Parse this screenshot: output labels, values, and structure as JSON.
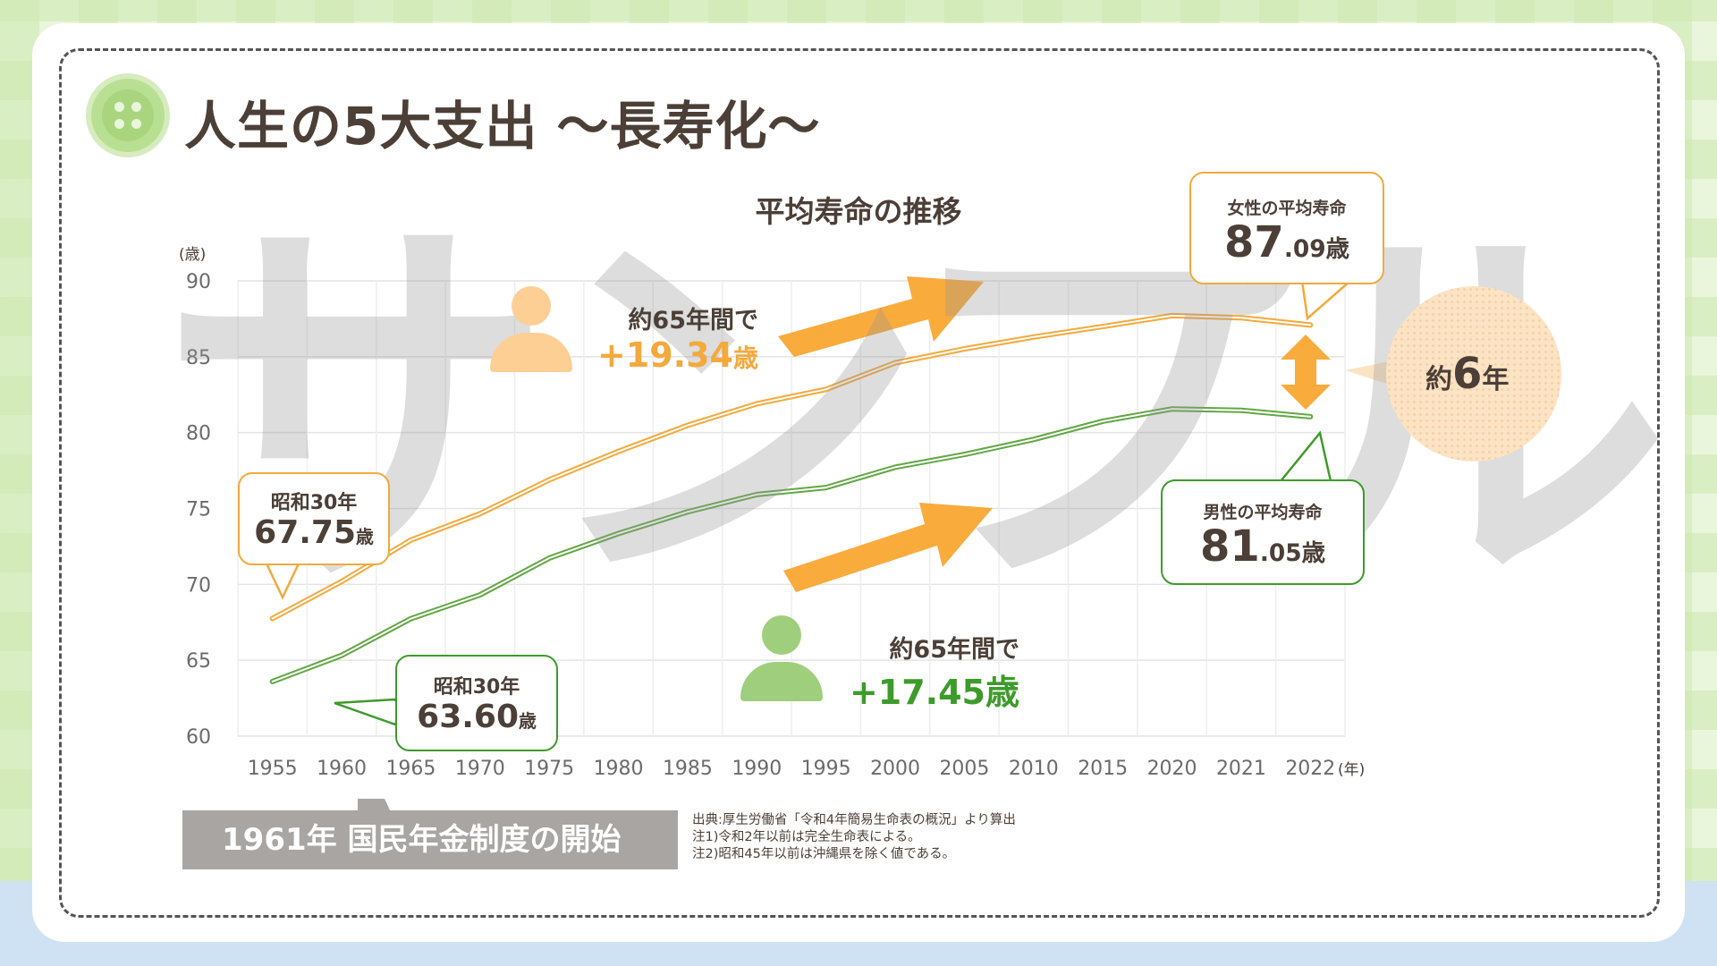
{
  "page": {
    "title": "人生の5大支出 ～長寿化～",
    "watermark": "サンプル"
  },
  "colors": {
    "female": "#f4a93c",
    "male": "#62a744",
    "female_person": "#fdcf95",
    "male_person": "#9fcf7d",
    "text": "#4b3f37"
  },
  "chart_data": {
    "type": "line",
    "title": "平均寿命の推移",
    "y_unit": "(歳)",
    "x_unit": "(年)",
    "ylim": [
      60,
      90
    ],
    "y_ticks": [
      60,
      65,
      70,
      75,
      80,
      85,
      90
    ],
    "grid": true,
    "categories": [
      "1955",
      "1960",
      "1965",
      "1970",
      "1975",
      "1980",
      "1985",
      "1990",
      "1995",
      "2000",
      "2005",
      "2010",
      "2015",
      "2020",
      "2021",
      "2022"
    ],
    "series": [
      {
        "key": "female",
        "values": [
          67.75,
          70.19,
          72.92,
          74.66,
          76.89,
          78.76,
          80.48,
          81.9,
          82.85,
          84.6,
          85.52,
          86.3,
          86.99,
          87.71,
          87.57,
          87.09
        ]
      },
      {
        "key": "male",
        "values": [
          63.6,
          65.32,
          67.74,
          69.31,
          71.73,
          73.35,
          74.78,
          75.92,
          76.38,
          77.72,
          78.56,
          79.55,
          80.75,
          81.56,
          81.47,
          81.05
        ]
      }
    ]
  },
  "callouts": {
    "female_start": {
      "label": "昭和30年",
      "value": "67.75",
      "unit": "歳"
    },
    "male_start": {
      "label": "昭和30年",
      "value": "63.60",
      "unit": "歳"
    },
    "female_2022": {
      "label": "女性の平均寿命",
      "value": "87",
      "decimal": ".09",
      "unit": "歳"
    },
    "male_2022": {
      "label": "男性の平均寿命",
      "value": "81",
      "decimal": ".05",
      "unit": "歳"
    }
  },
  "gains": {
    "female": {
      "label": "約65年間で",
      "value": "+19.34",
      "unit": "歳"
    },
    "male": {
      "label": "約65年間で",
      "value": "+17.45",
      "unit": "歳"
    }
  },
  "difference": {
    "prefix": "約",
    "value": "6",
    "unit": "年"
  },
  "pension": {
    "label": "1961年 国民年金制度の開始"
  },
  "notes": [
    "出典:厚生労働省「令和4年簡易生命表の概況」より算出",
    "注1)令和2年以前は完全生命表による。",
    "注2)昭和45年以前は沖縄県を除く値である。"
  ]
}
